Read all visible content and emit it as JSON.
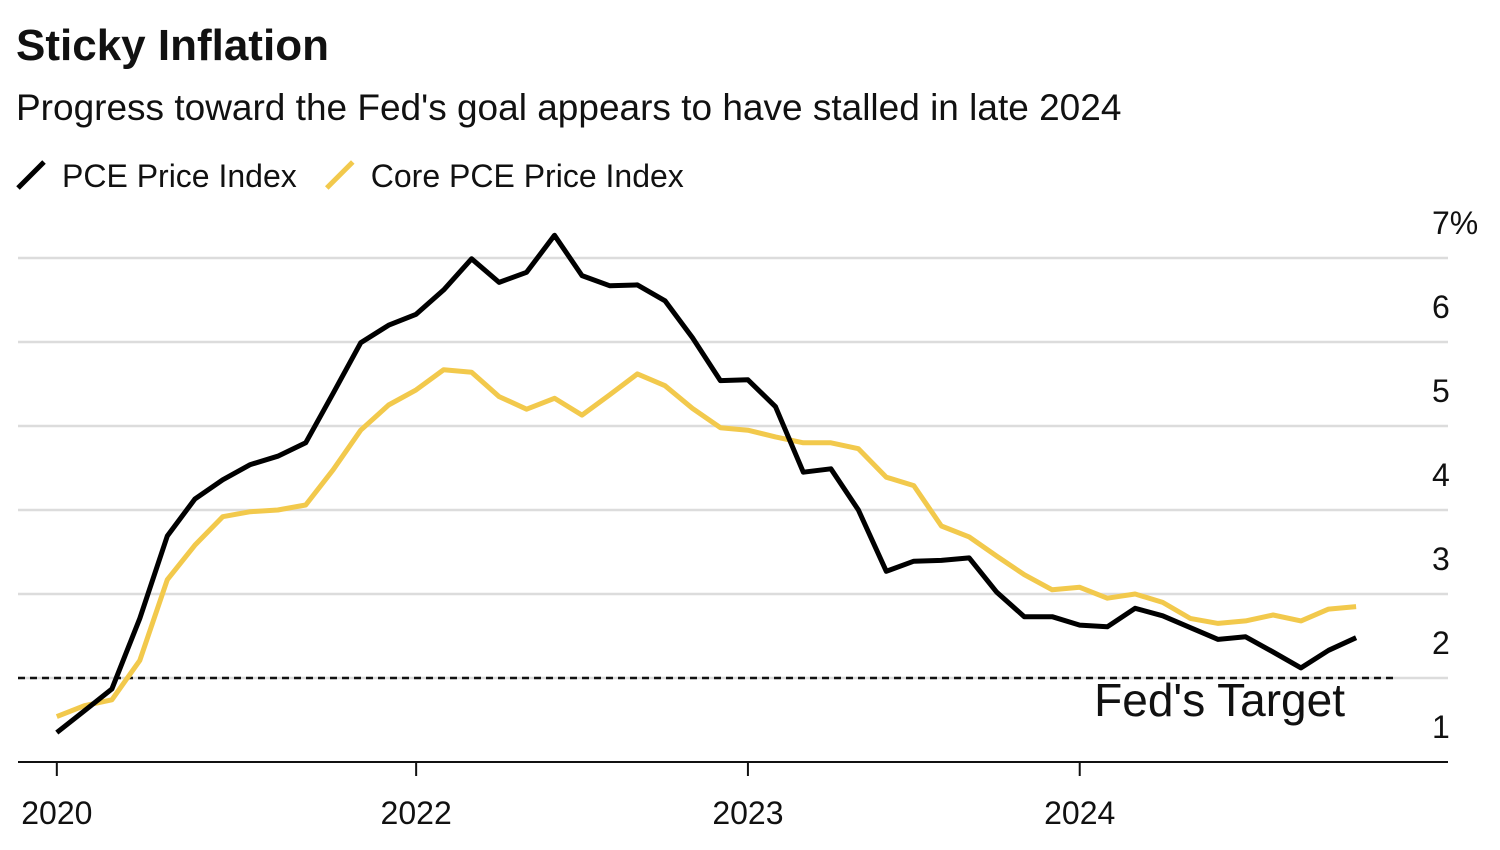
{
  "chart_data": {
    "type": "line",
    "title": "Sticky Inflation",
    "subtitle": "Progress toward the Fed's goal appears to have stalled in late 2024",
    "x": [
      2020.917,
      2021.0,
      2021.083,
      2021.167,
      2021.25,
      2021.333,
      2021.417,
      2021.5,
      2021.583,
      2021.667,
      2021.75,
      2021.833,
      2021.917,
      2022.0,
      2022.083,
      2022.167,
      2022.25,
      2022.333,
      2022.417,
      2022.5,
      2022.583,
      2022.667,
      2022.75,
      2022.833,
      2022.917,
      2023.0,
      2023.083,
      2023.167,
      2023.25,
      2023.333,
      2023.417,
      2023.5,
      2023.583,
      2023.667,
      2023.75,
      2023.833,
      2023.917,
      2024.0,
      2024.083,
      2024.167,
      2024.25,
      2024.333,
      2024.417,
      2024.5,
      2024.583,
      2024.667,
      2024.75,
      2024.833
    ],
    "series": [
      {
        "name": "PCE Price Index",
        "color": "#000000",
        "values": [
          1.35,
          1.61,
          1.87,
          2.71,
          3.69,
          4.13,
          4.36,
          4.54,
          4.64,
          4.8,
          5.39,
          5.99,
          6.2,
          6.33,
          6.62,
          6.99,
          6.71,
          6.83,
          7.27,
          6.79,
          6.67,
          6.68,
          6.49,
          6.05,
          5.54,
          5.55,
          5.23,
          4.45,
          4.49,
          4.0,
          3.27,
          3.39,
          3.4,
          3.43,
          3.02,
          2.73,
          2.73,
          2.63,
          2.61,
          2.83,
          2.74,
          2.6,
          2.46,
          2.49,
          2.31,
          2.12,
          2.33,
          2.48
        ]
      },
      {
        "name": "Core PCE Price Index",
        "color": "#f2c94c",
        "values": [
          1.54,
          1.67,
          1.74,
          2.21,
          3.17,
          3.58,
          3.92,
          3.98,
          4.0,
          4.06,
          4.48,
          4.95,
          5.25,
          5.43,
          5.67,
          5.64,
          5.35,
          5.2,
          5.33,
          5.13,
          5.37,
          5.62,
          5.48,
          5.21,
          4.98,
          4.95,
          4.87,
          4.8,
          4.8,
          4.73,
          4.39,
          4.29,
          3.81,
          3.68,
          3.45,
          3.23,
          3.05,
          3.08,
          2.95,
          3.0,
          2.9,
          2.71,
          2.65,
          2.68,
          2.75,
          2.68,
          2.82,
          2.85
        ]
      }
    ],
    "target": {
      "value": 2,
      "label": "Fed's Target"
    },
    "xlim": [
      2020.8,
      2025.11
    ],
    "xticks": [
      {
        "value": 2020.917,
        "label": "2020"
      },
      2022,
      2023,
      2024
    ],
    "ylim": [
      1,
      7.5
    ],
    "yticks": [
      1,
      2,
      3,
      4,
      5,
      6,
      {
        "value": 7,
        "label": "7%"
      }
    ],
    "grid": true
  }
}
